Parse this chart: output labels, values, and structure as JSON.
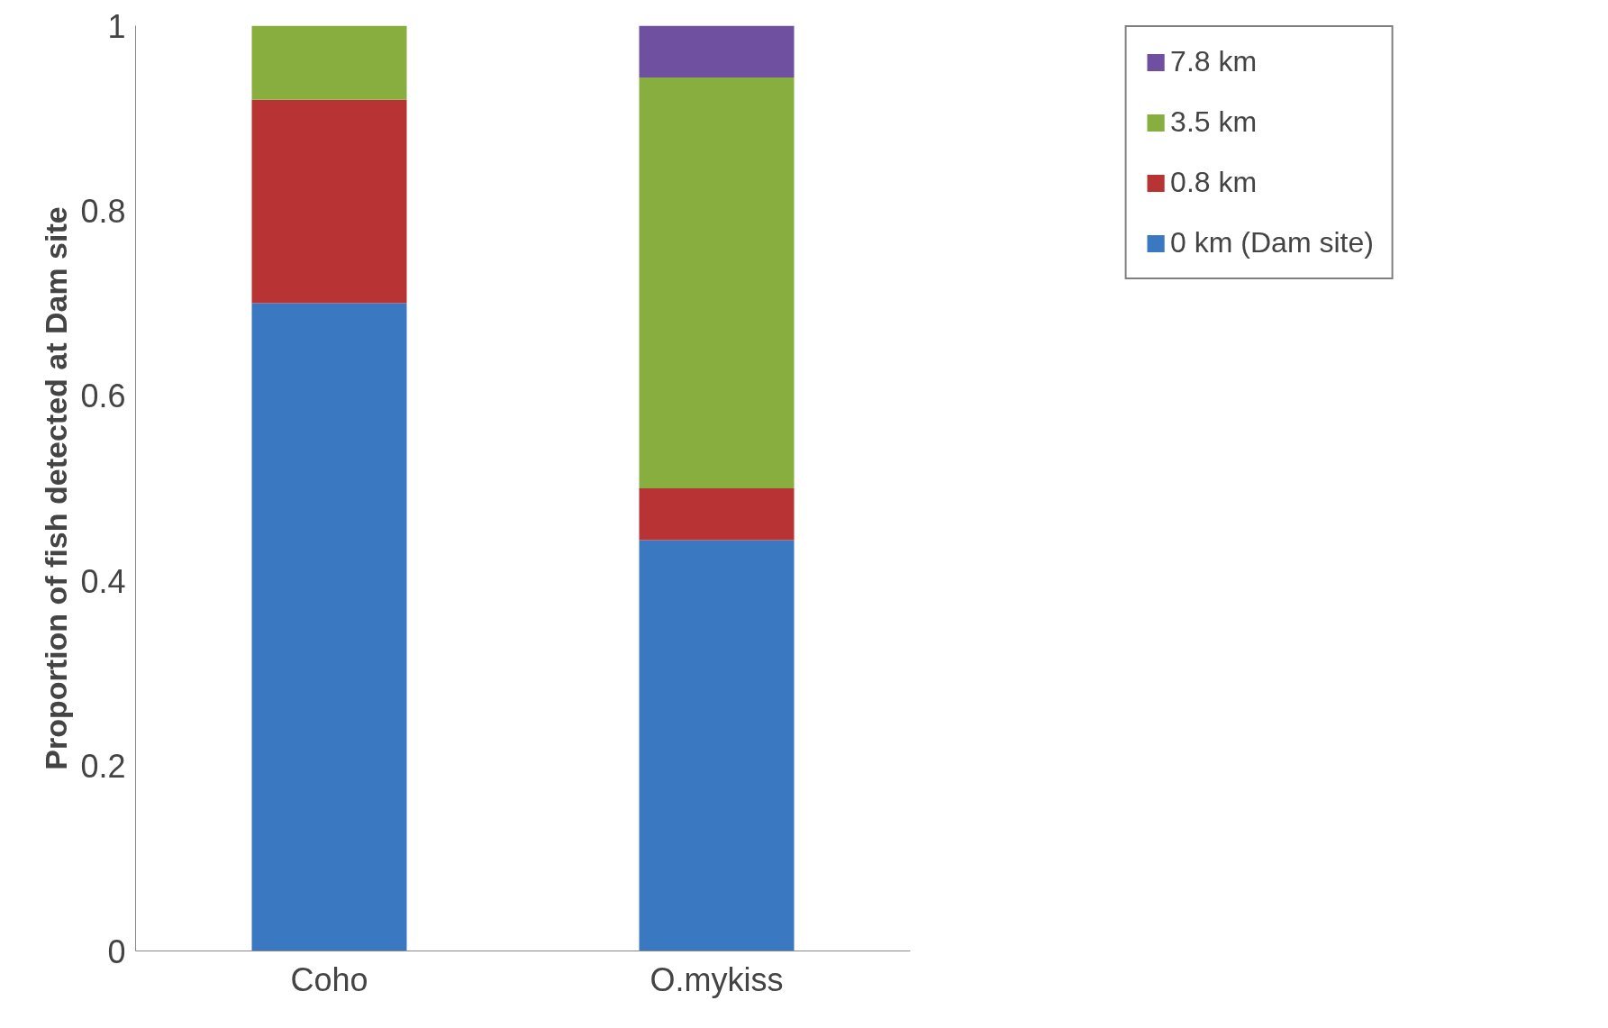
{
  "chart_data": {
    "type": "bar",
    "stacked": true,
    "ylabel": "Proportion of fish detected at Dam site",
    "categories": [
      "Coho",
      "O.mykiss"
    ],
    "series": [
      {
        "name": "0 km (Dam site)",
        "color": "#3a78c2",
        "values": [
          0.7,
          0.444
        ]
      },
      {
        "name": "0.8 km",
        "color": "#b83434",
        "values": [
          0.22,
          0.056
        ]
      },
      {
        "name": "3.5 km",
        "color": "#88ae40",
        "values": [
          0.08,
          0.444
        ]
      },
      {
        "name": "7.8 km",
        "color": "#6f4fa0",
        "values": [
          0,
          0.056
        ]
      }
    ],
    "ylim": [
      0,
      1
    ],
    "yticks": [
      0,
      0.2,
      0.4,
      0.6,
      0.8,
      1
    ],
    "grid": false,
    "legend": "top right"
  }
}
